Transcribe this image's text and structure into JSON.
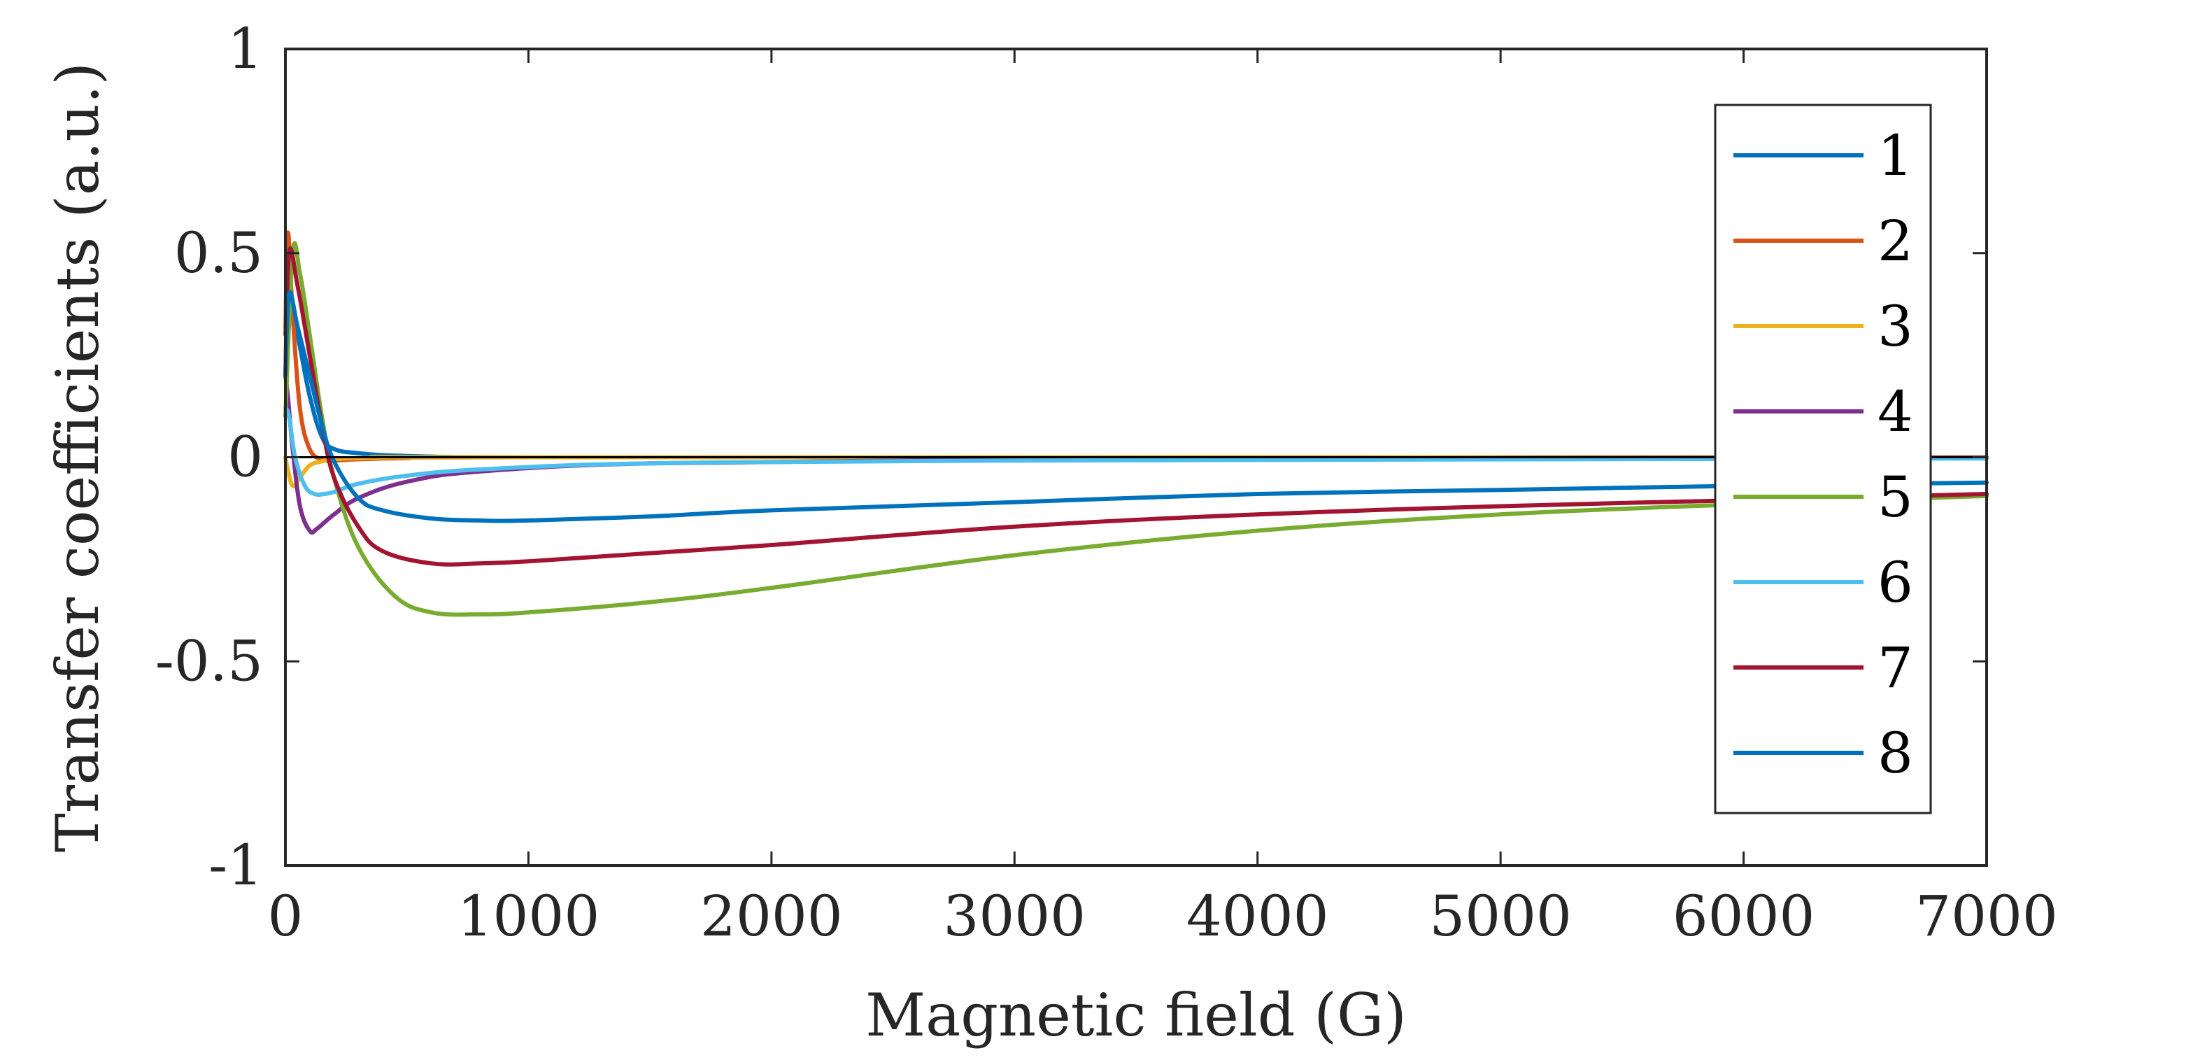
{
  "chart_data": {
    "type": "line",
    "title": "",
    "xlabel": "Magnetic field (G)",
    "ylabel": "Transfer coefficients (a.u.)",
    "xlim": [
      0,
      7000
    ],
    "ylim": [
      -1,
      1
    ],
    "xticks": [
      0,
      1000,
      2000,
      3000,
      4000,
      5000,
      6000,
      7000
    ],
    "xtick_labels": [
      "0",
      "1000",
      "2000",
      "3000",
      "4000",
      "5000",
      "6000",
      "7000"
    ],
    "yticks": [
      -1,
      -0.5,
      0,
      0.5,
      1
    ],
    "ytick_labels": [
      "-1",
      "-0.5",
      "0",
      "0.5",
      "1"
    ],
    "grid": false,
    "legend_position": "right",
    "zero_line": true,
    "series": [
      {
        "name": "1",
        "color": "#0072BD",
        "x": [
          0,
          20,
          50,
          100,
          150,
          200,
          300,
          500,
          1000,
          3000,
          7000
        ],
        "y": [
          0.3,
          0.38,
          0.3,
          0.15,
          0.05,
          0.02,
          0.01,
          0.003,
          0.0,
          0.0,
          0.0
        ]
      },
      {
        "name": "2",
        "color": "#D95319",
        "x": [
          0,
          10,
          30,
          60,
          100,
          150,
          200,
          300,
          500,
          1000,
          7000
        ],
        "y": [
          0.3,
          0.55,
          0.35,
          0.12,
          0.02,
          -0.005,
          -0.008,
          -0.005,
          -0.002,
          0.0,
          0.0
        ]
      },
      {
        "name": "3",
        "color": "#EDB120",
        "x": [
          0,
          10,
          30,
          60,
          100,
          150,
          200,
          300,
          500,
          1000,
          7000
        ],
        "y": [
          0.0,
          -0.03,
          -0.07,
          -0.05,
          -0.02,
          -0.01,
          -0.005,
          -0.002,
          0.0,
          0.0,
          0.0
        ]
      },
      {
        "name": "4",
        "color": "#7E2F8E",
        "x": [
          0,
          10,
          30,
          60,
          100,
          130,
          200,
          300,
          500,
          800,
          1500,
          3000,
          5000,
          7000
        ],
        "y": [
          0.2,
          0.15,
          0.02,
          -0.12,
          -0.18,
          -0.175,
          -0.14,
          -0.1,
          -0.06,
          -0.035,
          -0.015,
          -0.005,
          -0.002,
          -0.001
        ]
      },
      {
        "name": "5",
        "color": "#77AC30",
        "x": [
          0,
          30,
          60,
          100,
          150,
          200,
          300,
          450,
          600,
          800,
          1000,
          1500,
          2000,
          3000,
          4000,
          5000,
          6000,
          7000
        ],
        "y": [
          0.1,
          0.5,
          0.45,
          0.3,
          0.1,
          -0.05,
          -0.22,
          -0.34,
          -0.38,
          -0.385,
          -0.38,
          -0.355,
          -0.32,
          -0.24,
          -0.18,
          -0.14,
          -0.115,
          -0.095
        ]
      },
      {
        "name": "6",
        "color": "#4DBEEE",
        "x": [
          0,
          15,
          40,
          80,
          120,
          160,
          200,
          300,
          500,
          800,
          1500,
          3000,
          7000
        ],
        "y": [
          0.12,
          0.1,
          0.0,
          -0.07,
          -0.09,
          -0.09,
          -0.085,
          -0.065,
          -0.045,
          -0.03,
          -0.015,
          -0.008,
          -0.003
        ]
      },
      {
        "name": "7",
        "color": "#A2142F",
        "x": [
          0,
          15,
          50,
          100,
          150,
          200,
          300,
          400,
          600,
          800,
          1000,
          1500,
          2000,
          3000,
          4000,
          5000,
          6000,
          7000
        ],
        "y": [
          0.2,
          0.5,
          0.42,
          0.25,
          0.08,
          -0.05,
          -0.17,
          -0.23,
          -0.26,
          -0.26,
          -0.255,
          -0.235,
          -0.215,
          -0.17,
          -0.14,
          -0.12,
          -0.105,
          -0.09
        ]
      },
      {
        "name": "8",
        "color": "#0072BD",
        "x": [
          0,
          15,
          50,
          100,
          150,
          200,
          300,
          400,
          600,
          800,
          1000,
          1500,
          2000,
          3000,
          4000,
          5000,
          6000,
          7000
        ],
        "y": [
          0.2,
          0.4,
          0.32,
          0.2,
          0.08,
          -0.01,
          -0.1,
          -0.13,
          -0.15,
          -0.155,
          -0.155,
          -0.145,
          -0.13,
          -0.11,
          -0.09,
          -0.08,
          -0.07,
          -0.062
        ]
      }
    ]
  }
}
